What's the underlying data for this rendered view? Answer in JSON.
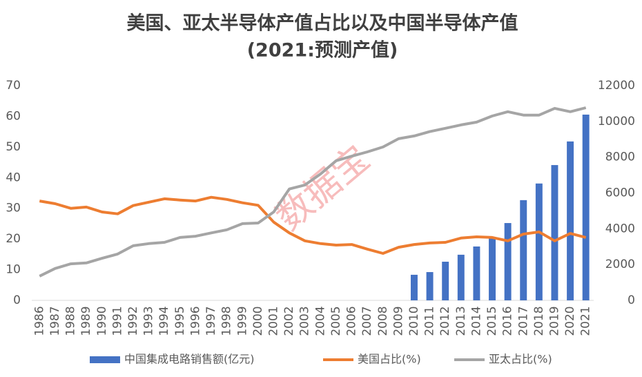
{
  "chart_data": {
    "type": "combo",
    "title": "美国、亚太半导体产值占比以及中国半导体产值",
    "subtitle": "(2021:预测产值)",
    "watermark": "数据宝",
    "categories": [
      "1986",
      "1987",
      "1988",
      "1989",
      "1990",
      "1991",
      "1992",
      "1993",
      "1994",
      "1995",
      "1996",
      "1997",
      "1998",
      "1999",
      "2000",
      "2001",
      "2002",
      "2003",
      "2004",
      "2005",
      "2006",
      "2007",
      "2008",
      "2009",
      "2010",
      "2011",
      "2012",
      "2013",
      "2014",
      "2015",
      "2016",
      "2017",
      "2018",
      "2019",
      "2020",
      "2021"
    ],
    "series": [
      {
        "name": "中国集成电路销售额(亿元)",
        "type": "bar",
        "axis": "y2",
        "color": "#4472c4",
        "values": [
          null,
          null,
          null,
          null,
          null,
          null,
          null,
          null,
          null,
          null,
          null,
          null,
          null,
          null,
          null,
          null,
          null,
          null,
          null,
          null,
          null,
          null,
          null,
          null,
          1430,
          1580,
          2160,
          2550,
          3010,
          3470,
          4320,
          5600,
          6530,
          7560,
          8880,
          10380
        ]
      },
      {
        "name": "美国占比(%)",
        "type": "line",
        "axis": "y",
        "color": "#ed7d31",
        "values": [
          32.4,
          31.5,
          30,
          30.4,
          28.8,
          28.2,
          30.9,
          32,
          33.1,
          32.7,
          32.4,
          33.6,
          32.9,
          31.8,
          31,
          25.5,
          22,
          19.4,
          18.5,
          18,
          18.2,
          16.7,
          15.3,
          17.3,
          18.2,
          18.7,
          18.9,
          20.3,
          20.7,
          20.5,
          19.4,
          21.6,
          22.3,
          19.4,
          21.8,
          20.5
        ]
      },
      {
        "name": "亚太占比(%)",
        "type": "line",
        "axis": "y",
        "color": "#a5a5a5",
        "values": [
          7.9,
          10.4,
          11.9,
          12.2,
          13.7,
          15.1,
          17.8,
          18.5,
          18.9,
          20.5,
          20.9,
          22,
          23,
          25,
          25.2,
          28.8,
          36.3,
          37.6,
          41.2,
          45.5,
          47,
          48.4,
          50,
          52.7,
          53.6,
          55,
          56.1,
          57.2,
          58.1,
          60.1,
          61.5,
          60.4,
          60.4,
          62.6,
          61.5,
          62.8
        ]
      }
    ],
    "ylim": [
      0,
      70
    ],
    "yticks": [
      0,
      10,
      20,
      30,
      40,
      50,
      60,
      70
    ],
    "y2lim": [
      0,
      12000
    ],
    "y2ticks": [
      0,
      2000,
      4000,
      6000,
      8000,
      10000,
      12000
    ],
    "grid": false,
    "legend": "bottom"
  }
}
